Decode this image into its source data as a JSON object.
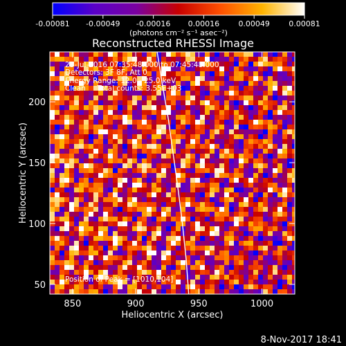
{
  "chart_data": {
    "type": "heatmap",
    "title": "Reconstructed RHESSI Image",
    "colorbar": {
      "ticks": [
        "-0.00081",
        "-0.00049",
        "-0.00016",
        "0.00016",
        "0.00049",
        "0.00081"
      ],
      "units_line": "(photons cm⁻² s⁻¹ asec⁻²)",
      "min": -0.00081,
      "max": 0.00081,
      "colors": [
        "#0000ff",
        "#5a00c8",
        "#7a00a0",
        "#c80000",
        "#ff5000",
        "#ffb400",
        "#ffffff"
      ]
    },
    "xlabel": "Heliocentric X (arcsec)",
    "ylabel": "Heliocentric Y (arcsec)",
    "xlim": [
      832,
      1026
    ],
    "ylim": [
      42,
      241
    ],
    "xticks": [
      "850",
      "900",
      "950",
      "1000"
    ],
    "yticks": [
      "50",
      "100",
      "150",
      "200"
    ],
    "annotations": [
      "23-Jul-2016 07:35:48.000 to 07:45:48.000",
      "Detectors: 3F 8F, Att 0",
      "Energy Range: 12.0 - 25.0 keV",
      "Clean     Total counts: 3.55E+03"
    ],
    "peak_text": "Position of Peak = [1010,104]",
    "peak_position": [
      1010,
      104
    ],
    "limb_curve": {
      "x": [
        917,
        921,
        926,
        930,
        934,
        937,
        940,
        942
      ],
      "y": [
        241,
        215,
        185,
        155,
        125,
        100,
        70,
        42
      ]
    },
    "grid": false
  },
  "footer": {
    "timestamp": "8-Nov-2017 18:41"
  }
}
